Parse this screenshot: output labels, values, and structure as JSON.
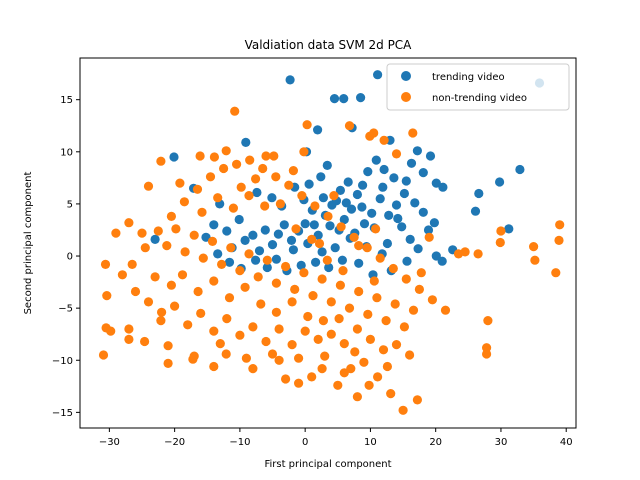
{
  "chart_data": {
    "type": "scatter",
    "title": "Valdiation data SVM 2d PCA",
    "xlabel": "First principal component",
    "ylabel": "Second principal component",
    "xlim": [
      -34.5,
      41.5
    ],
    "ylim": [
      -16.5,
      19.0
    ],
    "xticks": [
      -30,
      -20,
      -10,
      0,
      10,
      20,
      30,
      40
    ],
    "yticks": [
      -15,
      -10,
      -5,
      0,
      5,
      10,
      15
    ],
    "grid": false,
    "legend": "top-right",
    "series": [
      {
        "name": "trending video",
        "color": "#1f77b4",
        "points": [
          [
            -2.3,
            16.9
          ],
          [
            4.5,
            15.1
          ],
          [
            5.9,
            15.1
          ],
          [
            8.5,
            15.2
          ],
          [
            11.1,
            17.4
          ],
          [
            35.9,
            16.6
          ],
          [
            1.9,
            12.1
          ],
          [
            -9.1,
            10.9
          ],
          [
            -20.1,
            9.5
          ],
          [
            0.2,
            10.0
          ],
          [
            7.2,
            12.3
          ],
          [
            13.0,
            11.1
          ],
          [
            17.2,
            10.1
          ],
          [
            19.2,
            9.6
          ],
          [
            10.9,
            9.2
          ],
          [
            12.1,
            8.3
          ],
          [
            15.5,
            7.2
          ],
          [
            18.1,
            8.0
          ],
          [
            20.1,
            7.0
          ],
          [
            21.1,
            6.6
          ],
          [
            26.6,
            6.0
          ],
          [
            29.8,
            7.1
          ],
          [
            32.9,
            8.3
          ],
          [
            31.2,
            2.6
          ],
          [
            26.1,
            4.3
          ],
          [
            22.6,
            0.6
          ],
          [
            21.0,
            -0.5
          ],
          [
            20.1,
            0.0
          ],
          [
            18.9,
            2.5
          ],
          [
            19.8,
            3.2
          ],
          [
            18.1,
            4.2
          ],
          [
            16.8,
            5.1
          ],
          [
            15.2,
            6.0
          ],
          [
            14.0,
            4.9
          ],
          [
            12.8,
            3.9
          ],
          [
            11.5,
            5.5
          ],
          [
            10.2,
            4.1
          ],
          [
            9.1,
            3.1
          ],
          [
            8.0,
            5.9
          ],
          [
            7.1,
            4.5
          ],
          [
            6.0,
            3.5
          ],
          [
            5.2,
            2.5
          ],
          [
            4.1,
            4.9
          ],
          [
            3.1,
            3.9
          ],
          [
            2.0,
            2.0
          ],
          [
            1.1,
            4.4
          ],
          [
            0.0,
            3.1
          ],
          [
            -1.0,
            2.4
          ],
          [
            -2.1,
            1.5
          ],
          [
            -3.2,
            3.0
          ],
          [
            -4.1,
            2.1
          ],
          [
            -5.0,
            1.1
          ],
          [
            -6.1,
            2.5
          ],
          [
            -7.0,
            0.5
          ],
          [
            -8.0,
            2.0
          ],
          [
            -9.2,
            1.5
          ],
          [
            -10.1,
            3.5
          ],
          [
            -11.2,
            0.8
          ],
          [
            -12.0,
            2.4
          ],
          [
            -13.1,
            5.0
          ],
          [
            -14.0,
            3.0
          ],
          [
            -15.2,
            1.8
          ],
          [
            -17.1,
            6.5
          ],
          [
            -23.0,
            1.6
          ],
          [
            -7.4,
            6.1
          ],
          [
            -5.1,
            5.6
          ],
          [
            -3.6,
            4.8
          ],
          [
            -1.6,
            6.6
          ],
          [
            0.6,
            6.9
          ],
          [
            2.4,
            7.6
          ],
          [
            3.4,
            8.7
          ],
          [
            5.4,
            6.3
          ],
          [
            6.6,
            7.1
          ],
          [
            8.8,
            6.8
          ],
          [
            9.6,
            8.1
          ],
          [
            13.6,
            7.5
          ],
          [
            16.3,
            8.9
          ],
          [
            14.8,
            2.8
          ],
          [
            16.1,
            1.6
          ],
          [
            17.3,
            0.7
          ],
          [
            15.6,
            -0.5
          ],
          [
            13.2,
            -1.4
          ],
          [
            11.8,
            0.2
          ],
          [
            10.4,
            -1.8
          ],
          [
            9.4,
            0.9
          ],
          [
            8.2,
            -0.7
          ],
          [
            6.9,
            1.7
          ],
          [
            5.7,
            -0.4
          ],
          [
            4.6,
            0.8
          ],
          [
            3.6,
            -1.1
          ],
          [
            2.6,
            0.4
          ],
          [
            1.6,
            -0.6
          ],
          [
            0.4,
            1.2
          ],
          [
            -0.6,
            -0.9
          ],
          [
            -1.8,
            0.6
          ],
          [
            -2.8,
            -1.4
          ],
          [
            -4.4,
            -0.3
          ],
          [
            -5.8,
            -1.1
          ],
          [
            -7.6,
            -0.4
          ],
          [
            -9.8,
            -1.2
          ],
          [
            -11.6,
            -0.6
          ],
          [
            -13.4,
            0.2
          ],
          [
            7.6,
            2.2
          ],
          [
            8.7,
            4.7
          ],
          [
            10.6,
            2.7
          ],
          [
            11.9,
            6.6
          ],
          [
            12.6,
            1.2
          ],
          [
            14.2,
            3.6
          ],
          [
            4.8,
            5.3
          ],
          [
            6.3,
            5.1
          ],
          [
            3.8,
            2.9
          ],
          [
            2.8,
            5.6
          ],
          [
            1.4,
            3.0
          ],
          [
            -0.2,
            5.4
          ]
        ]
      },
      {
        "name": "non-trending video",
        "color": "#ff7f0e",
        "points": [
          [
            -10.8,
            13.9
          ],
          [
            0.3,
            12.6
          ],
          [
            6.8,
            12.5
          ],
          [
            9.9,
            11.5
          ],
          [
            10.5,
            11.8
          ],
          [
            12.1,
            11.1
          ],
          [
            14.0,
            9.8
          ],
          [
            16.5,
            11.8
          ],
          [
            -0.2,
            10.0
          ],
          [
            -6.0,
            9.6
          ],
          [
            -12.1,
            10.1
          ],
          [
            -13.9,
            9.5
          ],
          [
            -16.1,
            9.6
          ],
          [
            -22.1,
            9.1
          ],
          [
            -24.0,
            6.7
          ],
          [
            -27.0,
            3.2
          ],
          [
            -29.0,
            2.2
          ],
          [
            -30.6,
            -0.8
          ],
          [
            -30.4,
            -3.8
          ],
          [
            -30.5,
            -6.9
          ],
          [
            -29.8,
            -7.2
          ],
          [
            -30.9,
            -9.5
          ],
          [
            -27.0,
            -8.0
          ],
          [
            -27.0,
            -7.0
          ],
          [
            -24.6,
            -8.2
          ],
          [
            -22.1,
            -6.2
          ],
          [
            -21.0,
            -8.6
          ],
          [
            -21.0,
            -10.3
          ],
          [
            -17.0,
            -9.6
          ],
          [
            -17.2,
            -9.9
          ],
          [
            -14.0,
            -10.6
          ],
          [
            -12.1,
            -9.4
          ],
          [
            -8.0,
            -10.8
          ],
          [
            -4.0,
            -10.0
          ],
          [
            -3.0,
            -11.8
          ],
          [
            -1.0,
            -12.2
          ],
          [
            1.0,
            -11.6
          ],
          [
            2.6,
            -10.8
          ],
          [
            5.0,
            -12.4
          ],
          [
            7.0,
            -10.8
          ],
          [
            8.0,
            -13.5
          ],
          [
            9.8,
            -12.4
          ],
          [
            11.1,
            -11.6
          ],
          [
            13.1,
            -13.2
          ],
          [
            15.0,
            -14.8
          ],
          [
            17.2,
            -13.8
          ],
          [
            16.0,
            -9.5
          ],
          [
            14.0,
            -8.5
          ],
          [
            12.0,
            -9.0
          ],
          [
            10.0,
            -8.0
          ],
          [
            8.0,
            -7.0
          ],
          [
            6.0,
            -8.4
          ],
          [
            4.0,
            -7.5
          ],
          [
            2.0,
            -8.0
          ],
          [
            0.0,
            -7.2
          ],
          [
            -2.0,
            -8.5
          ],
          [
            -4.0,
            -7.0
          ],
          [
            -6.0,
            -8.2
          ],
          [
            -8.0,
            -6.8
          ],
          [
            -10.0,
            -7.6
          ],
          [
            -12.0,
            -6.0
          ],
          [
            -14.0,
            -7.2
          ],
          [
            -16.0,
            -5.5
          ],
          [
            -18.0,
            -6.6
          ],
          [
            -20.0,
            -4.8
          ],
          [
            -22.0,
            -5.4
          ],
          [
            -24.0,
            -4.4
          ],
          [
            -26.0,
            -3.4
          ],
          [
            -28.0,
            -1.8
          ],
          [
            -26.5,
            -0.8
          ],
          [
            -24.5,
            0.8
          ],
          [
            -22.5,
            2.4
          ],
          [
            -20.5,
            3.8
          ],
          [
            -18.5,
            5.2
          ],
          [
            -16.5,
            6.4
          ],
          [
            -14.5,
            7.6
          ],
          [
            -12.5,
            8.4
          ],
          [
            -10.5,
            8.8
          ],
          [
            -8.5,
            9.2
          ],
          [
            -6.5,
            8.4
          ],
          [
            -4.5,
            7.6
          ],
          [
            -2.5,
            6.8
          ],
          [
            -0.5,
            5.8
          ],
          [
            1.5,
            4.8
          ],
          [
            3.5,
            3.8
          ],
          [
            5.5,
            2.8
          ],
          [
            7.5,
            1.8
          ],
          [
            9.5,
            0.8
          ],
          [
            11.5,
            -0.2
          ],
          [
            13.5,
            -1.2
          ],
          [
            15.5,
            -2.2
          ],
          [
            17.5,
            -3.2
          ],
          [
            19.5,
            -4.2
          ],
          [
            21.5,
            -5.2
          ],
          [
            23.5,
            0.2
          ],
          [
            24.5,
            0.4
          ],
          [
            26.5,
            0.2
          ],
          [
            28.0,
            -6.2
          ],
          [
            27.8,
            -8.8
          ],
          [
            27.8,
            -9.4
          ],
          [
            29.9,
            1.3
          ],
          [
            30.0,
            2.4
          ],
          [
            35.0,
            0.9
          ],
          [
            35.2,
            -0.4
          ],
          [
            38.4,
            -1.6
          ],
          [
            38.9,
            1.5
          ],
          [
            39.0,
            3.0
          ],
          [
            10.8,
            2.6
          ],
          [
            19.0,
            1.8
          ],
          [
            17.8,
            -1.6
          ],
          [
            16.6,
            -5.2
          ],
          [
            15.2,
            -6.8
          ],
          [
            13.8,
            -4.6
          ],
          [
            12.4,
            -6.2
          ],
          [
            11.0,
            -4.0
          ],
          [
            9.6,
            -5.6
          ],
          [
            8.2,
            -3.4
          ],
          [
            6.8,
            -5.0
          ],
          [
            5.4,
            -2.8
          ],
          [
            4.0,
            -4.4
          ],
          [
            2.6,
            -2.2
          ],
          [
            1.2,
            -3.8
          ],
          [
            -0.2,
            -1.6
          ],
          [
            -1.6,
            -3.2
          ],
          [
            -3.0,
            -1.0
          ],
          [
            -4.4,
            -2.6
          ],
          [
            -5.8,
            -0.4
          ],
          [
            -7.2,
            -2.0
          ],
          [
            -8.6,
            0.2
          ],
          [
            -10.0,
            -1.4
          ],
          [
            -11.4,
            0.8
          ],
          [
            -12.8,
            -0.8
          ],
          [
            -14.2,
            1.4
          ],
          [
            -15.6,
            -0.2
          ],
          [
            -17.0,
            2.0
          ],
          [
            -18.4,
            0.4
          ],
          [
            -19.8,
            2.6
          ],
          [
            -21.2,
            1.0
          ],
          [
            -15.8,
            4.2
          ],
          [
            -13.4,
            5.6
          ],
          [
            -11.0,
            4.6
          ],
          [
            -8.6,
            5.8
          ],
          [
            -6.2,
            4.8
          ],
          [
            -3.8,
            5.0
          ],
          [
            -1.4,
            2.6
          ],
          [
            1.0,
            1.6
          ],
          [
            3.4,
            -0.4
          ],
          [
            5.8,
            -1.4
          ],
          [
            8.2,
            1.0
          ],
          [
            10.6,
            -2.4
          ],
          [
            -18.8,
            -1.8
          ],
          [
            -16.4,
            -3.4
          ],
          [
            -14.0,
            -2.4
          ],
          [
            -11.6,
            -4.0
          ],
          [
            -9.2,
            -3.0
          ],
          [
            -6.8,
            -4.6
          ],
          [
            -4.4,
            -5.4
          ],
          [
            -2.0,
            -4.4
          ],
          [
            0.4,
            -5.8
          ],
          [
            2.8,
            -6.2
          ],
          [
            5.2,
            -6.0
          ],
          [
            7.6,
            -9.2
          ],
          [
            -13.0,
            -8.4
          ],
          [
            -9.0,
            -9.8
          ],
          [
            -5.0,
            -9.4
          ],
          [
            -1.0,
            -9.8
          ],
          [
            3.0,
            -9.6
          ],
          [
            6.0,
            -11.2
          ],
          [
            9.0,
            -10.2
          ],
          [
            12.6,
            -10.6
          ],
          [
            -20.5,
            -2.8
          ],
          [
            -23.0,
            -2.0
          ],
          [
            -25.0,
            2.2
          ],
          [
            -19.2,
            7.0
          ],
          [
            -9.8,
            6.6
          ],
          [
            -7.6,
            7.4
          ],
          [
            -4.8,
            9.6
          ],
          [
            -1.8,
            8.2
          ],
          [
            2.2,
            1.2
          ],
          [
            4.4,
            5.8
          ]
        ]
      }
    ]
  }
}
